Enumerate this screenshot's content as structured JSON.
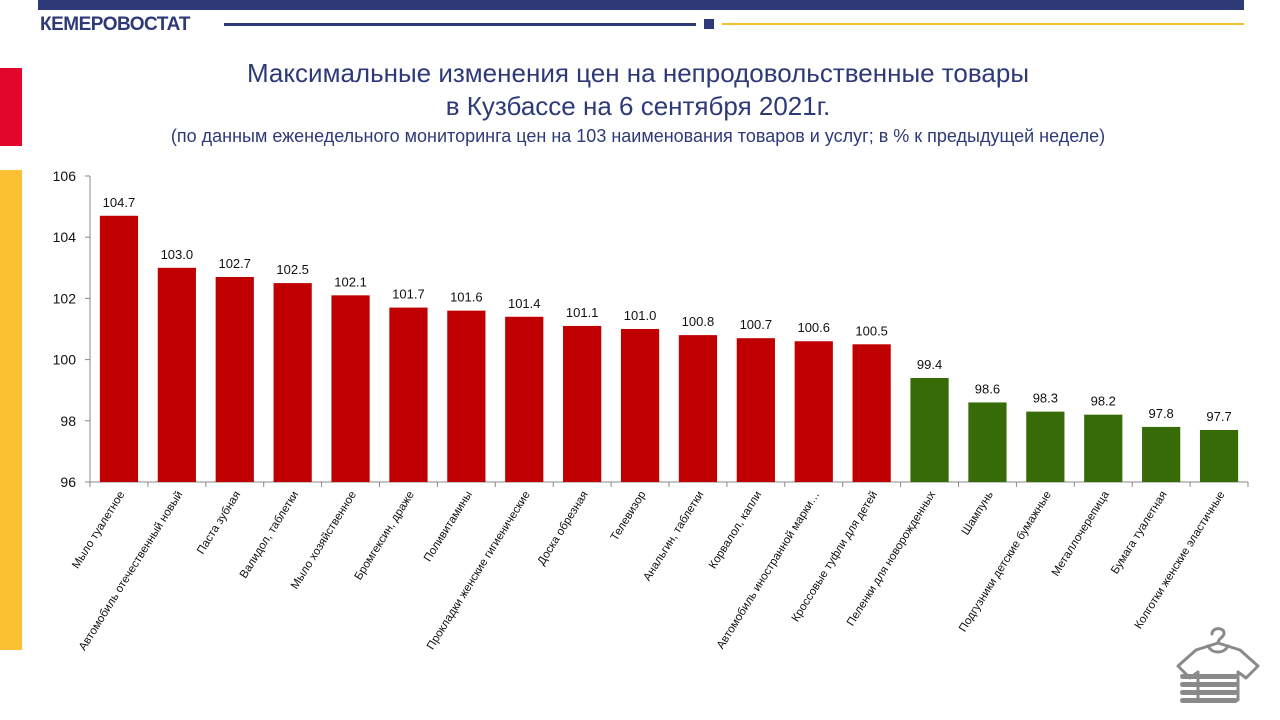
{
  "header": {
    "brand": "КЕМЕРОВОСТАТ"
  },
  "colors": {
    "brand": "#2e3a78",
    "increase": "#c00000",
    "decrease": "#376b08",
    "accent_red": "#e2052c",
    "accent_yellow": "#fcc132"
  },
  "chart_data": {
    "type": "bar",
    "title_line1": "Максимальные изменения цен на непродовольственные товары",
    "title_line2": "в Кузбассе на 6 сентября 2021г.",
    "subtitle": "(по данным еженедельного мониторинга цен на 103 наименования товаров и услуг; в % к предыдущей неделе)",
    "xlabel": "",
    "ylabel": "",
    "ylim": [
      96,
      106
    ],
    "yticks": [
      96,
      98,
      100,
      102,
      104,
      106
    ],
    "grid": false,
    "categories": [
      "Мыло туалетное",
      "Автомобиль отечественный новый",
      "Паста зубная",
      "Валидол, таблетки",
      "Мыло хозяйственное",
      "Бромгексин, драже",
      "Поливитамины",
      "Прокладки женские гигиенические",
      "Доска обрезная",
      "Телевизор",
      "Анальгин, таблетки",
      "Корвалол, капли",
      "Автомобиль иностранной марки…",
      "Кроссовые туфли для детей",
      "Пеленки для новорожденных",
      "Шампунь",
      "Подгузники детские бумажные",
      "Металлочерепица",
      "Бумага туалетная",
      "Колготки женские эластичные"
    ],
    "values": [
      104.7,
      103.0,
      102.7,
      102.5,
      102.1,
      101.7,
      101.6,
      101.4,
      101.1,
      101.0,
      100.8,
      100.7,
      100.6,
      100.5,
      99.4,
      98.6,
      98.3,
      98.2,
      97.8,
      97.7
    ],
    "data_labels": [
      "104.7",
      "103.0",
      "102.7",
      "102.5",
      "102.1",
      "101.7",
      "101.6",
      "101.4",
      "101.1",
      "101.0",
      "100.8",
      "100.7",
      "100.6",
      "100.5",
      "99.4",
      "98.6",
      "98.3",
      "98.2",
      "97.8",
      "97.7"
    ]
  },
  "icons": {
    "corner": "clothes-stack-icon"
  }
}
